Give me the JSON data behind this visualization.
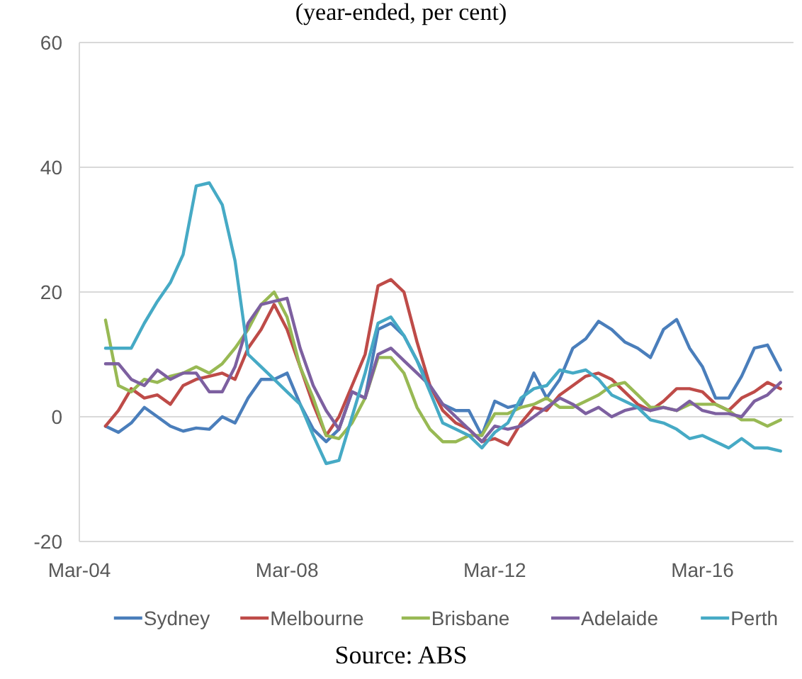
{
  "chart_data": {
    "type": "line",
    "subtitle": "(year-ended, per cent)",
    "x": [
      "2004-09",
      "2004-12",
      "2005-03",
      "2005-06",
      "2005-09",
      "2005-12",
      "2006-03",
      "2006-06",
      "2006-09",
      "2006-12",
      "2007-03",
      "2007-06",
      "2007-09",
      "2007-12",
      "2008-03",
      "2008-06",
      "2008-09",
      "2008-12",
      "2009-03",
      "2009-06",
      "2009-09",
      "2009-12",
      "2010-03",
      "2010-06",
      "2010-09",
      "2010-12",
      "2011-03",
      "2011-06",
      "2011-09",
      "2011-12",
      "2012-03",
      "2012-06",
      "2012-09",
      "2012-12",
      "2013-03",
      "2013-06",
      "2013-09",
      "2013-12",
      "2014-03",
      "2014-06",
      "2014-09",
      "2014-12",
      "2015-03",
      "2015-06",
      "2015-09",
      "2015-12",
      "2016-03",
      "2016-06",
      "2016-09",
      "2016-12",
      "2017-03",
      "2017-06",
      "2017-09"
    ],
    "series": [
      {
        "name": "Sydney",
        "color": "#4a7ebb",
        "values": [
          -1.5,
          -2.5,
          -1,
          1.5,
          0,
          -1.5,
          -2.3,
          -1.8,
          -2,
          0,
          -1,
          3,
          6,
          6,
          7,
          2,
          -2,
          -4,
          -2,
          4,
          3,
          14,
          15,
          13,
          9,
          5,
          2,
          1,
          1,
          -3,
          2.5,
          1.5,
          2,
          7,
          3,
          6,
          11,
          12.5,
          15.3,
          14,
          12,
          11,
          9.5,
          14,
          15.6,
          11,
          8,
          3,
          3,
          6.5,
          11,
          11.5,
          7.5
        ]
      },
      {
        "name": "Melbourne",
        "color": "#be4b48",
        "values": [
          -1.5,
          1,
          4.5,
          3,
          3.5,
          2,
          5,
          6,
          6.5,
          7,
          6,
          11,
          14,
          18,
          14,
          8,
          2,
          -3,
          0,
          5,
          10,
          21,
          22,
          20,
          12,
          5,
          1,
          -1,
          -2,
          -4,
          -3.5,
          -4.5,
          -1,
          1.5,
          1,
          3.5,
          5,
          6.5,
          7,
          6,
          4,
          2,
          1,
          2.5,
          4.5,
          4.5,
          4,
          2,
          1,
          3,
          4,
          5.5,
          4.5
        ]
      },
      {
        "name": "Brisbane",
        "color": "#98b954",
        "values": [
          15.5,
          5,
          4,
          6,
          5.5,
          6.5,
          7,
          8,
          7,
          8.5,
          11,
          14,
          18,
          20,
          16,
          8,
          3,
          -3,
          -3.5,
          -1,
          3,
          9.5,
          9.5,
          7,
          1.5,
          -2,
          -4,
          -4,
          -3,
          -3,
          0.5,
          0.5,
          1.5,
          2,
          3,
          1.5,
          1.5,
          2.5,
          3.5,
          5,
          5.5,
          3.5,
          1.5,
          1.5,
          1,
          2,
          2,
          2,
          1,
          -0.5,
          -0.5,
          -1.5,
          -0.5
        ]
      },
      {
        "name": "Adelaide",
        "color": "#7d60a0",
        "values": [
          8.5,
          8.5,
          6,
          5,
          7.5,
          6,
          7,
          7,
          4,
          4,
          8,
          15,
          18,
          18.5,
          19,
          11,
          5,
          1,
          -2,
          4,
          3,
          10,
          11,
          9,
          7,
          5,
          2,
          0,
          -2,
          -4,
          -1.5,
          -2,
          -1.5,
          0,
          1.5,
          3,
          2,
          0.5,
          1.5,
          0,
          1,
          1.5,
          1,
          1.5,
          1,
          2.5,
          1,
          0.5,
          0.5,
          0,
          2.5,
          3.5,
          5.5
        ]
      },
      {
        "name": "Perth",
        "color": "#46aac5",
        "values": [
          11,
          11,
          11,
          15,
          18.5,
          21.5,
          26,
          37,
          37.5,
          34,
          25,
          10,
          8,
          6,
          4,
          2,
          -3,
          -7.5,
          -7,
          0,
          7,
          15,
          16,
          13,
          9,
          4,
          -1,
          -2,
          -3,
          -5,
          -2.5,
          -1,
          3,
          4.5,
          5,
          7.5,
          7,
          7.5,
          6,
          3.5,
          2.5,
          1.5,
          -0.5,
          -1,
          -2,
          -3.5,
          -3,
          -4,
          -5,
          -3.5,
          -5,
          -5,
          -5.5
        ]
      }
    ],
    "xlim": [
      "2004-03",
      "2017-12"
    ],
    "xticks": [
      {
        "value": "2004-03",
        "label": "Mar-04"
      },
      {
        "value": "2008-03",
        "label": "Mar-08"
      },
      {
        "value": "2012-03",
        "label": "Mar-12"
      },
      {
        "value": "2016-03",
        "label": "Mar-16"
      }
    ],
    "ylim": [
      -20,
      60
    ],
    "yticks": [
      -20,
      0,
      20,
      40,
      60
    ],
    "grid": "y",
    "legend": "bottom",
    "line_style": "solid",
    "annotations": [
      "Source: ABS"
    ]
  }
}
